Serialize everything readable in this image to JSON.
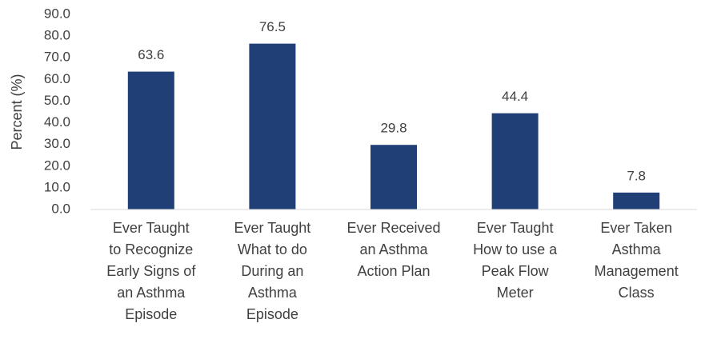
{
  "chart_data": {
    "type": "bar",
    "y_axis_label": "Percent (%)",
    "categories": [
      "Ever Taught\nto Recognize\nEarly Signs of\nan Asthma\nEpisode",
      "Ever Taught\nWhat to do\nDuring an\nAsthma\nEpisode",
      "Ever Received\nan Asthma\nAction Plan",
      "Ever Taught\nHow to use a\nPeak Flow\nMeter",
      "Ever Taken\nAsthma\nManagement\nClass"
    ],
    "values": [
      63.6,
      76.5,
      29.8,
      44.4,
      7.8
    ],
    "color": "#203f77",
    "ylim": [
      0,
      90
    ],
    "yticks": [
      {
        "value": 0,
        "label": "0.0"
      },
      {
        "value": 10,
        "label": "10.0"
      },
      {
        "value": 20,
        "label": "20.0"
      },
      {
        "value": 30,
        "label": "30.0"
      },
      {
        "value": 40,
        "label": "40.0"
      },
      {
        "value": 50,
        "label": "50.0"
      },
      {
        "value": 60,
        "label": "60.0"
      },
      {
        "value": 70,
        "label": "70.0"
      },
      {
        "value": 80,
        "label": "80.0"
      },
      {
        "value": 90,
        "label": "90.0"
      }
    ],
    "grid": false
  }
}
